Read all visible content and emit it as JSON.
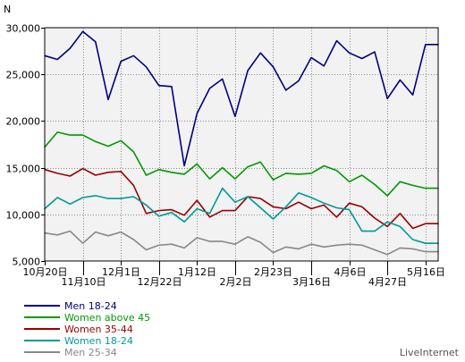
{
  "chart_data": {
    "type": "line",
    "ylabel": "N",
    "ylim": [
      5000,
      30000
    ],
    "yticks": [
      5000,
      10000,
      15000,
      20000,
      25000,
      30000
    ],
    "ytick_labels": [
      "5,000",
      "10,000",
      "15,000",
      "20,000",
      "25,000",
      "30,000"
    ],
    "grid": true,
    "x": [
      0,
      1,
      2,
      3,
      4,
      5,
      6,
      7,
      8,
      9,
      10,
      11,
      12,
      13,
      14,
      15,
      16,
      17,
      18,
      19,
      20,
      21,
      22,
      23,
      24,
      25,
      26,
      27,
      28,
      29,
      30,
      31
    ],
    "xtick_labels": [
      {
        "index": 0,
        "label": "10月20日",
        "row": 1
      },
      {
        "index": 3,
        "label": "11月10日",
        "row": 2
      },
      {
        "index": 6,
        "label": "12月1日",
        "row": 1
      },
      {
        "index": 9,
        "label": "12月22日",
        "row": 2
      },
      {
        "index": 12,
        "label": "1月12日",
        "row": 1
      },
      {
        "index": 15,
        "label": "2月2日",
        "row": 2
      },
      {
        "index": 18,
        "label": "2月23日",
        "row": 1
      },
      {
        "index": 21,
        "label": "3月16日",
        "row": 2
      },
      {
        "index": 24,
        "label": "4月6日",
        "row": 1
      },
      {
        "index": 27,
        "label": "4月27日",
        "row": 2
      },
      {
        "index": 30,
        "label": "5月16日",
        "row": 1
      }
    ],
    "legend_position": "bottom-left",
    "series": [
      {
        "name": "Men 18-24",
        "color": "#000080",
        "values": [
          27000,
          26600,
          27800,
          29600,
          28500,
          22300,
          26400,
          27000,
          25800,
          23800,
          23700,
          15200,
          20800,
          23500,
          24500,
          20500,
          25400,
          27300,
          25800,
          23300,
          24300,
          26800,
          25900,
          28600,
          27300,
          26700,
          27400,
          22400,
          24400,
          22800,
          28200,
          28200
        ]
      },
      {
        "name": "Women above 45",
        "color": "#009900",
        "values": [
          17200,
          18800,
          18500,
          18500,
          17800,
          17300,
          17900,
          16700,
          14200,
          14800,
          14500,
          14300,
          15400,
          13800,
          15000,
          13800,
          15100,
          15600,
          13700,
          14400,
          14300,
          14400,
          15200,
          14700,
          13500,
          14200,
          13200,
          12000,
          13500,
          13100,
          12800,
          12800
        ]
      },
      {
        "name": "Women 35-44",
        "color": "#990000",
        "values": [
          14800,
          14400,
          14100,
          14900,
          14200,
          14500,
          14600,
          13100,
          10100,
          10400,
          10500,
          9900,
          11500,
          9700,
          10400,
          10400,
          11900,
          11700,
          10800,
          10600,
          11300,
          10600,
          11000,
          9700,
          11200,
          10800,
          9600,
          8700,
          10100,
          8500,
          9000,
          9000
        ]
      },
      {
        "name": "Women 18-24",
        "color": "#009999",
        "values": [
          10600,
          11800,
          11100,
          11800,
          12000,
          11700,
          11700,
          11900,
          11000,
          9800,
          10200,
          9200,
          10600,
          10100,
          12800,
          11300,
          11900,
          10700,
          9500,
          10800,
          12300,
          11800,
          11200,
          10700,
          10500,
          8200,
          8200,
          9200,
          8700,
          7300,
          6900,
          6900
        ]
      },
      {
        "name": "Men 25-34",
        "color": "#888888",
        "values": [
          8000,
          7800,
          8200,
          6900,
          8100,
          7700,
          8100,
          7300,
          6200,
          6700,
          6800,
          6400,
          7500,
          7100,
          7100,
          6800,
          7600,
          7000,
          5900,
          6500,
          6300,
          6800,
          6500,
          6700,
          6800,
          6700,
          6200,
          5700,
          6400,
          6300,
          6000,
          6000
        ]
      }
    ]
  },
  "source_label": "LiveInternet"
}
